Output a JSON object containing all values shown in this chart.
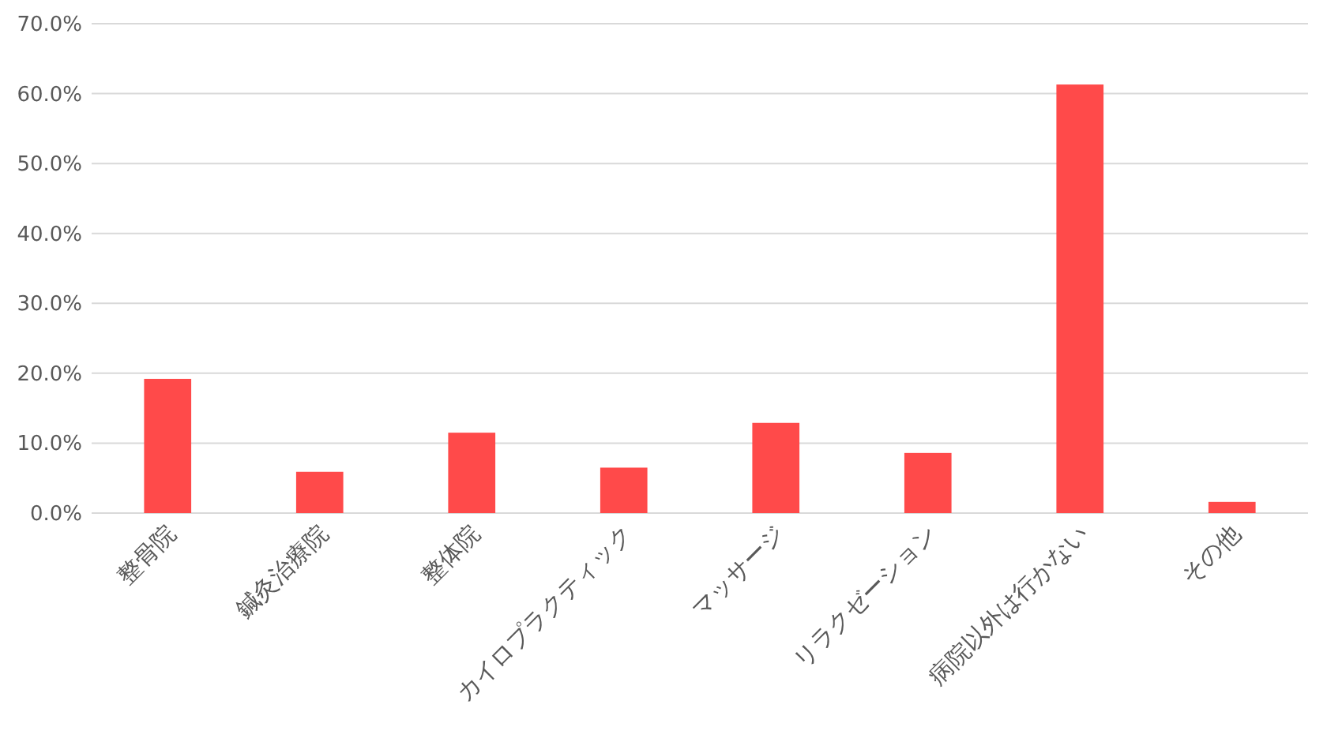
{
  "chart_data": {
    "type": "bar",
    "categories": [
      "整骨院",
      "鍼灸治療院",
      "整体院",
      "カイロプラクティック",
      "マッサージ",
      "リラクゼーション",
      "病院以外は行かない",
      "その他"
    ],
    "values": [
      19.2,
      5.9,
      11.5,
      6.5,
      12.9,
      8.6,
      61.3,
      1.6
    ],
    "color": "#ff4a4a",
    "ylim": [
      0,
      70
    ],
    "yticks": [
      {
        "value": 0,
        "label": "0.0%"
      },
      {
        "value": 10,
        "label": "10.0%"
      },
      {
        "value": 20,
        "label": "20.0%"
      },
      {
        "value": 30,
        "label": "30.0%"
      },
      {
        "value": 40,
        "label": "40.0%"
      },
      {
        "value": 50,
        "label": "50.0%"
      },
      {
        "value": 60,
        "label": "60.0%"
      },
      {
        "value": 70,
        "label": "70.0%"
      }
    ],
    "grid": "y"
  }
}
